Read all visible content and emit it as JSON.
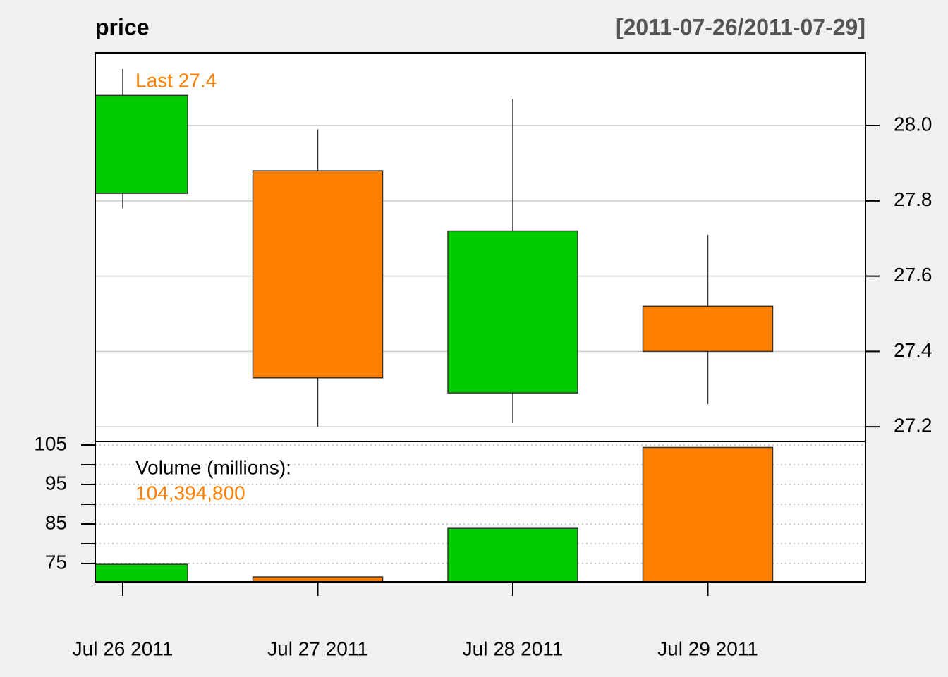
{
  "chart_data": {
    "type": "candlestick",
    "title": "price",
    "date_range": "[2011-07-26/2011-07-29]",
    "last_label": "Last 27.4",
    "categories": [
      "Jul 26 2011",
      "Jul 27 2011",
      "Jul 28 2011",
      "Jul 29 2011"
    ],
    "open": [
      27.82,
      27.88,
      27.29,
      27.52
    ],
    "high": [
      28.15,
      27.99,
      28.07,
      27.71
    ],
    "low": [
      27.78,
      27.2,
      27.21,
      27.26
    ],
    "close": [
      28.08,
      27.33,
      27.72,
      27.4
    ],
    "colors": [
      "#00cc00",
      "#ff7f00",
      "#00cc00",
      "#ff7f00"
    ],
    "ylim": [
      27.161,
      28.193
    ],
    "yticks": [
      {
        "value": 27.2,
        "label": "27.2"
      },
      {
        "value": 27.4,
        "label": "27.4"
      },
      {
        "value": 27.6,
        "label": "27.6"
      },
      {
        "value": 27.8,
        "label": "27.8"
      },
      {
        "value": 28.0,
        "label": "28.0"
      }
    ],
    "grid": true,
    "volume": {
      "label": "Volume (millions):",
      "values": [
        74.8,
        71.6,
        83.9,
        104.3948
      ],
      "last_value_label": "104,394,800",
      "ylim": [
        70.36,
        105.9
      ],
      "yticks": [
        75,
        85,
        95,
        105
      ],
      "minor_yticks": [
        80,
        90,
        100
      ]
    }
  }
}
